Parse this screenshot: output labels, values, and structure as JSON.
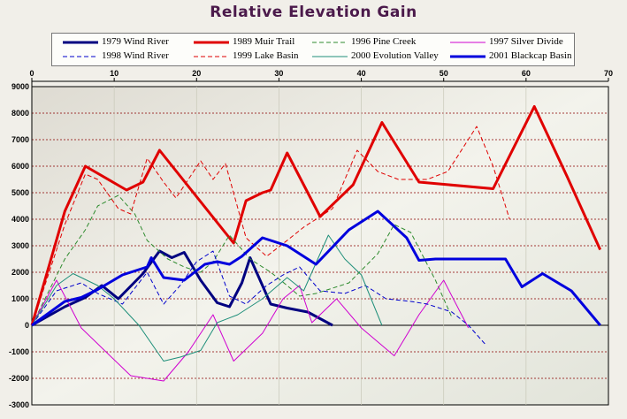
{
  "title": "Relative Elevation Gain",
  "chart_data": {
    "type": "line",
    "title": "Relative Elevation Gain",
    "xlim": [
      0,
      70
    ],
    "ylim": [
      -3000,
      9000
    ],
    "x_ticks": [
      0,
      10,
      20,
      30,
      40,
      50,
      60,
      70
    ],
    "y_ticks": [
      -3000,
      -2000,
      -1000,
      0,
      1000,
      2000,
      3000,
      4000,
      5000,
      6000,
      7000,
      8000,
      9000
    ],
    "x_tick_labels": [
      "0",
      "10",
      "20",
      "30",
      "40",
      "50",
      "60",
      "70"
    ],
    "y_tick_labels": [
      "-3000",
      "-2000",
      "-1000",
      "0",
      "1000",
      "2000",
      "3000",
      "4000",
      "5000",
      "6000",
      "7000",
      "8000",
      "9000"
    ],
    "x_axis_position": "top",
    "grid": true,
    "legend_position": "top",
    "series": [
      {
        "name": "1979 Wind River",
        "color": "#000080",
        "style": "solid",
        "width": 3,
        "x": [
          0,
          4,
          6.5,
          8.5,
          10.5,
          13.5,
          15.5,
          17,
          18.5,
          20.5,
          22.5,
          24,
          25.5,
          26.5,
          29,
          31,
          33.5,
          36.5
        ],
        "y": [
          0,
          700,
          1050,
          1500,
          1000,
          1950,
          2800,
          2550,
          2750,
          1700,
          850,
          700,
          1600,
          2550,
          800,
          650,
          500,
          0
        ]
      },
      {
        "name": "1989 Muir Trail",
        "color": "#e00000",
        "style": "solid",
        "width": 3,
        "x": [
          0,
          4,
          6.5,
          11.5,
          13.5,
          15.5,
          24.5,
          26,
          28,
          29,
          31,
          35,
          39,
          42.5,
          47,
          56,
          61,
          65,
          69
        ],
        "y": [
          0,
          4300,
          6000,
          5100,
          5400,
          6600,
          3100,
          4700,
          5000,
          5100,
          6500,
          4100,
          5300,
          7650,
          5400,
          5150,
          8250,
          5600,
          2850
        ]
      },
      {
        "name": "1996 Pine Creek",
        "color": "#2e8b2e",
        "style": "dash",
        "width": 1,
        "x": [
          0,
          4,
          6.5,
          8,
          10.5,
          12.5,
          14,
          16.5,
          18.5,
          20.5,
          22,
          24,
          26.5,
          29,
          31,
          32.5,
          34.5,
          38.5,
          42,
          44,
          46,
          49,
          51
        ],
        "y": [
          0,
          2500,
          3600,
          4500,
          4900,
          4200,
          3200,
          2500,
          2200,
          2000,
          2400,
          3400,
          2500,
          2000,
          1500,
          1100,
          1200,
          1600,
          2700,
          3800,
          3500,
          1700,
          300
        ]
      },
      {
        "name": "1997 Silver Divide",
        "color": "#d000d0",
        "style": "solid",
        "width": 1,
        "x": [
          0,
          3,
          6,
          9,
          12,
          16,
          19,
          22,
          24.5,
          28,
          30.5,
          32.5,
          34,
          37,
          40,
          44,
          47,
          50,
          53
        ],
        "y": [
          0,
          1700,
          -100,
          -1000,
          -1900,
          -2100,
          -1000,
          400,
          -1350,
          -300,
          1000,
          1500,
          100,
          1000,
          -100,
          -1150,
          400,
          1700,
          -100
        ]
      },
      {
        "name": "1998 Wind River",
        "color": "#0000cc",
        "style": "dash",
        "width": 1,
        "x": [
          0,
          3,
          6,
          8,
          11,
          14,
          16,
          18,
          20,
          22,
          24,
          26,
          28.5,
          30.5,
          32.5,
          35,
          38,
          40.5,
          43,
          46,
          48,
          51,
          53,
          55
        ],
        "y": [
          0,
          1300,
          1600,
          1200,
          800,
          2000,
          800,
          1500,
          2400,
          2800,
          1100,
          800,
          1500,
          1900,
          2200,
          1300,
          1200,
          1500,
          1000,
          900,
          800,
          500,
          0,
          -700
        ]
      },
      {
        "name": "1999 Lake Basin",
        "color": "#e00000",
        "style": "dash",
        "width": 1,
        "x": [
          0,
          4,
          6.5,
          8,
          10.5,
          12,
          14,
          16,
          17.5,
          20.5,
          22,
          23.5,
          26,
          28.5,
          31,
          33,
          36.5,
          39.5,
          42,
          44.5,
          48,
          50.5,
          54,
          56,
          58
        ],
        "y": [
          0,
          3800,
          5700,
          5500,
          4400,
          4200,
          6300,
          5400,
          4800,
          6200,
          5500,
          6100,
          3300,
          2600,
          3200,
          3700,
          4400,
          6600,
          5800,
          5500,
          5500,
          5800,
          7500,
          6000,
          4000
        ]
      },
      {
        "name": "2000 Evolution Valley",
        "color": "#1f8f7a",
        "style": "solid",
        "width": 1,
        "x": [
          0,
          3,
          5,
          8,
          10,
          13,
          16,
          18,
          20.5,
          22.5,
          25,
          28,
          31,
          33,
          36,
          38,
          40,
          42.5
        ],
        "y": [
          0,
          1500,
          1950,
          1500,
          1000,
          0,
          -1350,
          -1200,
          -950,
          100,
          400,
          1000,
          1800,
          1300,
          3400,
          2500,
          1900,
          0
        ]
      },
      {
        "name": "2001 Blackcap Basin",
        "color": "#0000dd",
        "style": "solid",
        "width": 3,
        "x": [
          0,
          4,
          6,
          8,
          11,
          14,
          14.5,
          16,
          18.5,
          21,
          22.5,
          24,
          25.5,
          28,
          31,
          34.5,
          38.5,
          42,
          45.5,
          47,
          49,
          51,
          55,
          57.5,
          59.5,
          62,
          65.5,
          69
        ],
        "y": [
          0,
          900,
          1050,
          1350,
          1900,
          2200,
          2550,
          1800,
          1700,
          2300,
          2400,
          2300,
          2600,
          3300,
          3000,
          2300,
          3600,
          4300,
          3300,
          2450,
          2500,
          2500,
          2500,
          2500,
          1450,
          1950,
          1300,
          0
        ]
      }
    ]
  }
}
